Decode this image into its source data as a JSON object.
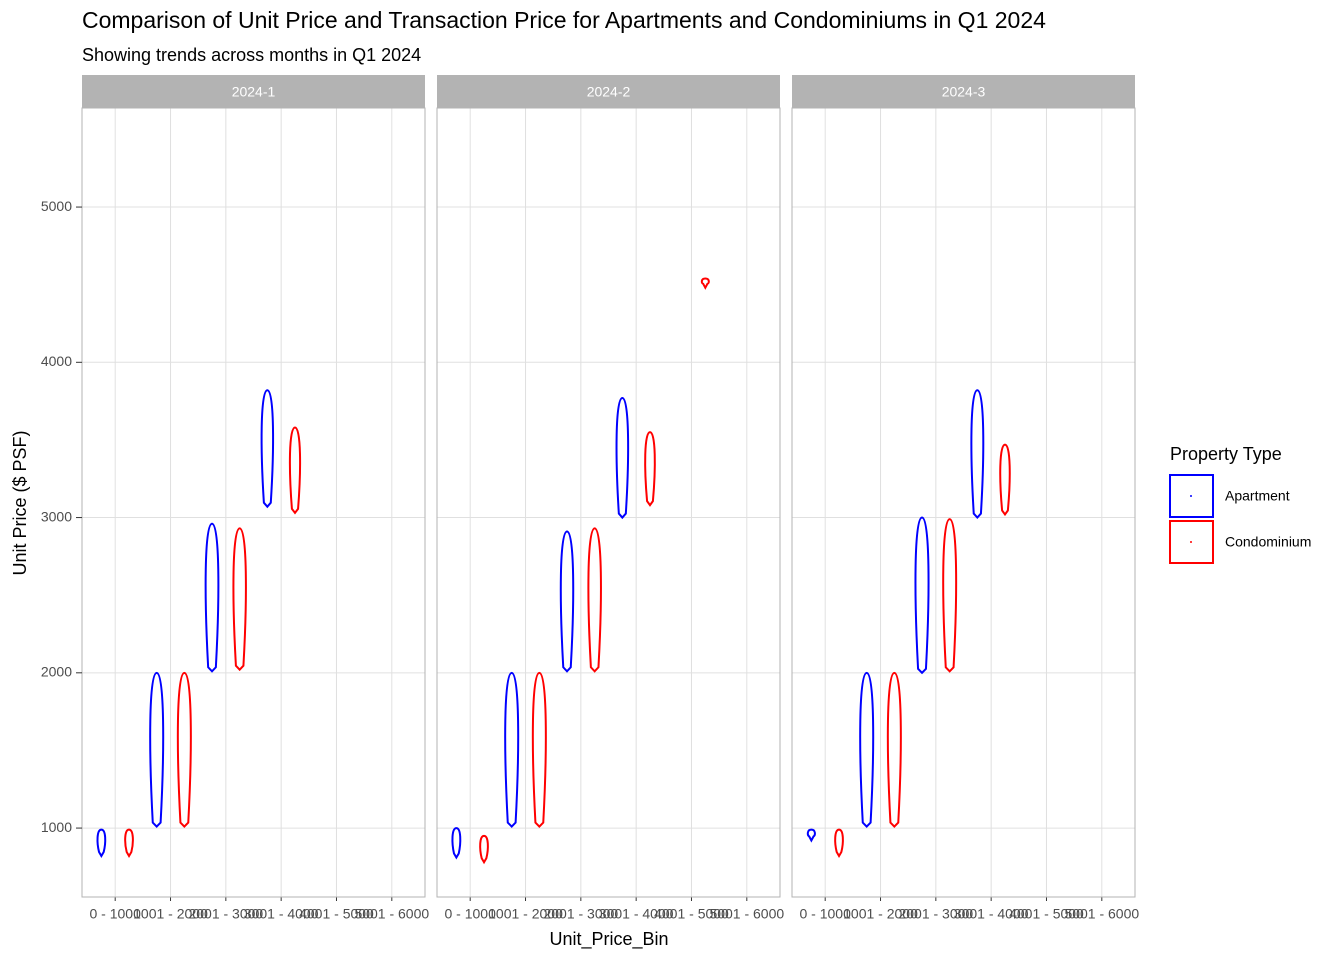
{
  "chart_data": {
    "type": "violin",
    "title": "Comparison of Unit Price and Transaction Price for Apartments and Condominiums in Q1 2024",
    "subtitle": "Showing trends across months in Q1 2024",
    "x_label": "Unit_Price_Bin",
    "y_label": "Unit Price ($ PSF)",
    "legend_title": "Property Type",
    "categories": [
      "0 - 1000",
      "1001 - 2000",
      "2001 - 3000",
      "3001 - 4000",
      "4001 - 5000",
      "5001 - 6000"
    ],
    "ylim": [
      556,
      5638
    ],
    "yticks": [
      1000,
      2000,
      3000,
      4000,
      5000
    ],
    "grid": true,
    "series": [
      {
        "name": "Apartment",
        "color": "#0000ff"
      },
      {
        "name": "Condominium",
        "color": "#ff0000"
      }
    ],
    "facets": [
      {
        "label": "2024-1",
        "min": [
          [
            820,
            1010,
            2010,
            3070,
            null,
            null
          ],
          [
            820,
            1010,
            2020,
            3030,
            null,
            null
          ]
        ],
        "max": [
          [
            990,
            2000,
            2960,
            3820,
            null,
            null
          ],
          [
            990,
            2000,
            2930,
            3580,
            null,
            null
          ]
        ]
      },
      {
        "label": "2024-2",
        "min": [
          [
            810,
            1010,
            2010,
            3000,
            null,
            null
          ],
          [
            780,
            1010,
            2010,
            3080,
            4480,
            null
          ]
        ],
        "max": [
          [
            1000,
            2000,
            2910,
            3770,
            null,
            null
          ],
          [
            950,
            2000,
            2930,
            3550,
            4540,
            null
          ]
        ]
      },
      {
        "label": "2024-3",
        "min": [
          [
            920,
            1010,
            2000,
            3000,
            null,
            null
          ],
          [
            820,
            1010,
            2010,
            3020,
            null,
            null
          ]
        ],
        "max": [
          [
            990,
            2000,
            3000,
            3820,
            null,
            null
          ],
          [
            990,
            2000,
            2990,
            3470,
            null,
            null
          ]
        ]
      }
    ]
  }
}
